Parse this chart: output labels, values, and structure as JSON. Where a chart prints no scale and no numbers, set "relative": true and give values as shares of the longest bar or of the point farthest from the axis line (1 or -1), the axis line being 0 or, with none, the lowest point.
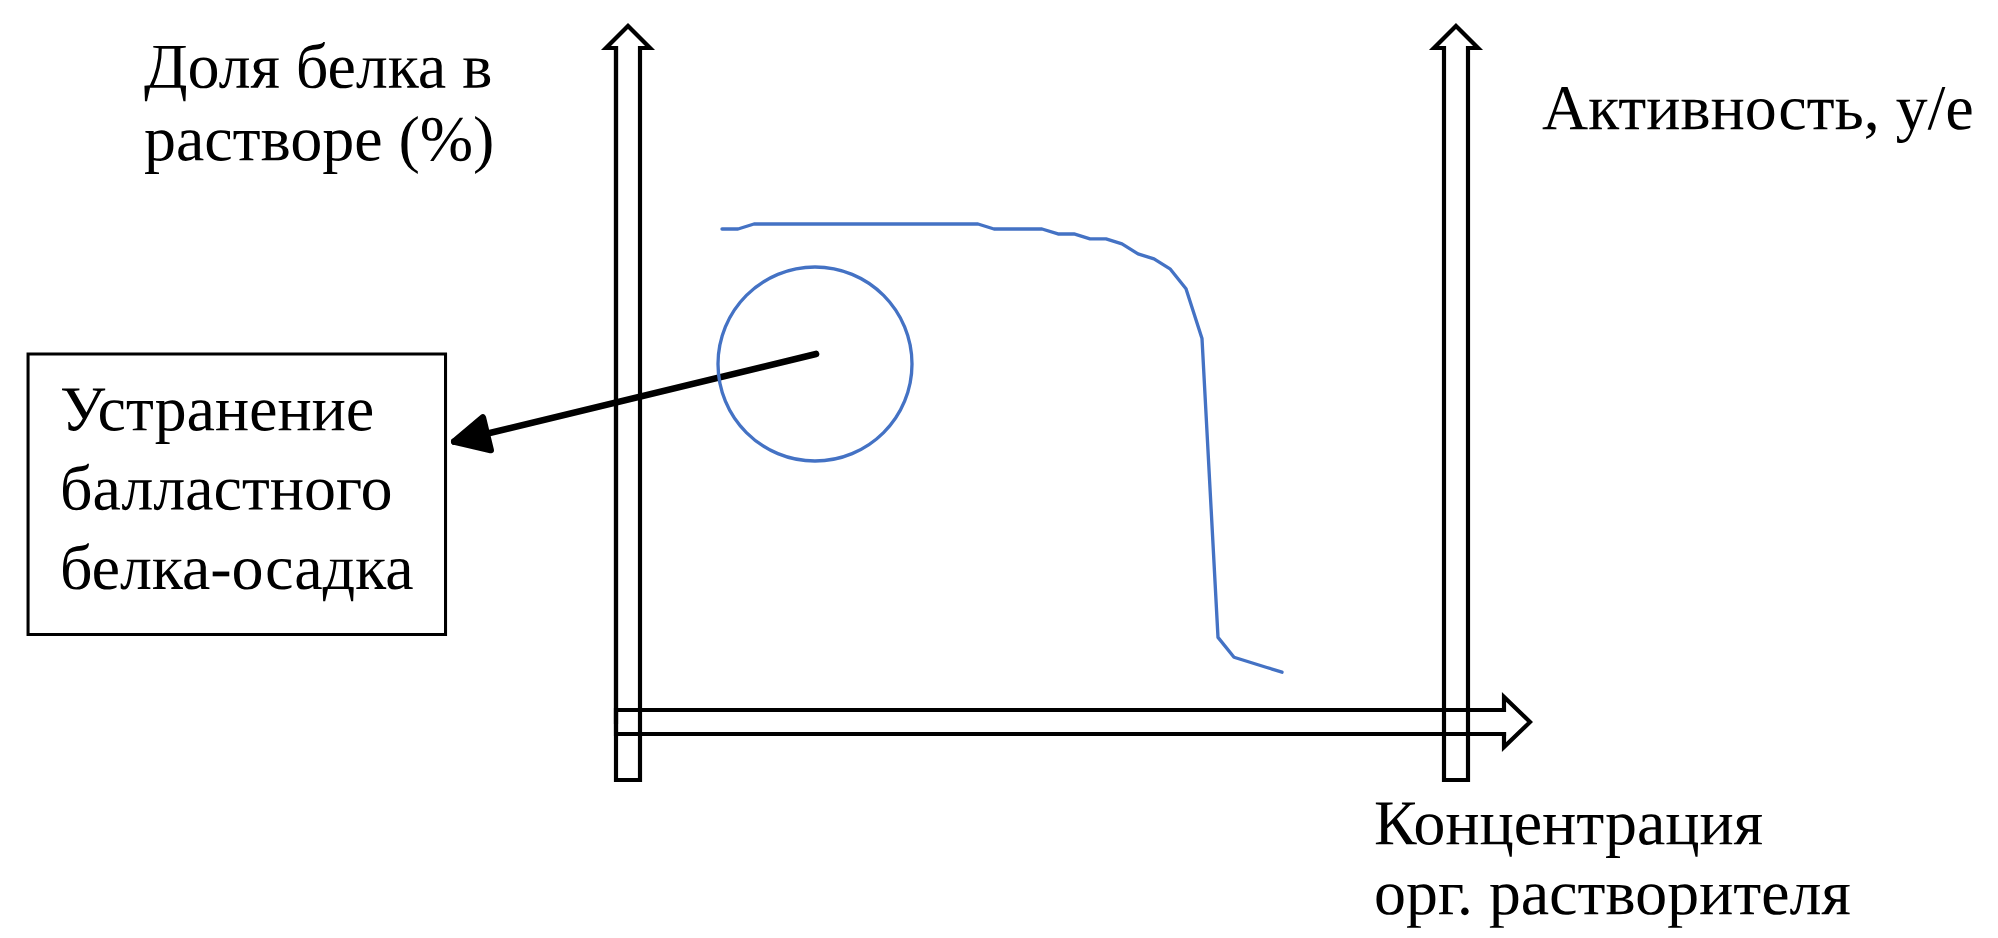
{
  "chart_data": {
    "type": "line",
    "relative": true,
    "ylabel": "Доля белка в\nрастворе (%)",
    "y2label": "Активность, у/е",
    "xlabel": "Концентрация\nорг. растворителя",
    "annotations": [
      "Устранение\nбалластного\nбелка-осадка"
    ],
    "categories": [
      null,
      null,
      null,
      null,
      null,
      null,
      null,
      null,
      null,
      null,
      null,
      null,
      null,
      null,
      null,
      null,
      null,
      null,
      null,
      null,
      null,
      null,
      null,
      null,
      null,
      null,
      null,
      null,
      null,
      null,
      null,
      null,
      null,
      null,
      null,
      null,
      null,
      null,
      null,
      null,
      null,
      null,
      null,
      null,
      null,
      null,
      null,
      null,
      null,
      null,
      null,
      null,
      null,
      null,
      null,
      null,
      null
    ],
    "series": [
      {
        "color": "#4472c4",
        "values": [
          null,
          null,
          null,
          null,
          null,
          null,
          0.99,
          0.99,
          1.0,
          1,
          1,
          1,
          1,
          1,
          1,
          1,
          1,
          1,
          1,
          1,
          1,
          1,
          1,
          0.99,
          0.99,
          0.99,
          0.99,
          0.98,
          0.98,
          0.97,
          0.97,
          0.96,
          0.94,
          0.93,
          0.91,
          0.87,
          0.77,
          0.17,
          0.13,
          0.12,
          0.11,
          0.1,
          null,
          null,
          null,
          null,
          null,
          null,
          null,
          null,
          null,
          null,
          null,
          null,
          null,
          null,
          null
        ]
      }
    ]
  }
}
